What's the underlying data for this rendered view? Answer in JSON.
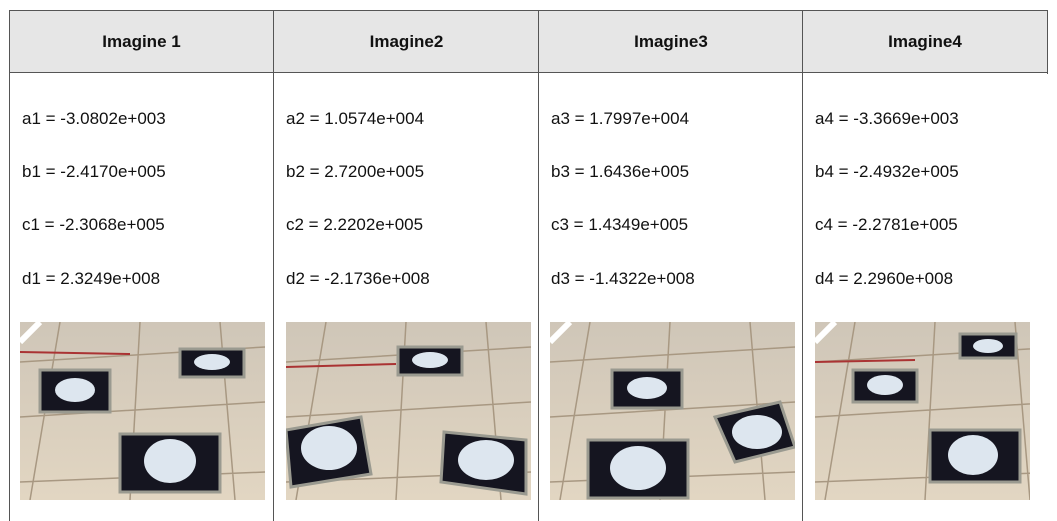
{
  "table": {
    "columns": [
      {
        "header": "Imagine 1",
        "lines": [
          "a1 = -3.0802e+003",
          "b1 = -2.4170e+005",
          "c1 = -2.3068e+005",
          "d1 = 2.3249e+008"
        ]
      },
      {
        "header": "Imagine2",
        "lines": [
          "a2 = 1.0574e+004",
          "b2 = 2.7200e+005",
          "c2 = 2.2202e+005",
          "d2 = -2.1736e+008"
        ]
      },
      {
        "header": "Imagine3",
        "lines": [
          "a3 = 1.7997e+004",
          "b3 = 1.6436e+005",
          "c3 = 1.4349e+005",
          "d3 = -1.4322e+008"
        ]
      },
      {
        "header": "Imagine4",
        "lines": [
          "a4 = -3.3669e+003",
          "b4 = -2.4932e+005",
          "c4 = -2.2781e+005",
          "d4 = 2.2960e+008"
        ]
      }
    ]
  }
}
